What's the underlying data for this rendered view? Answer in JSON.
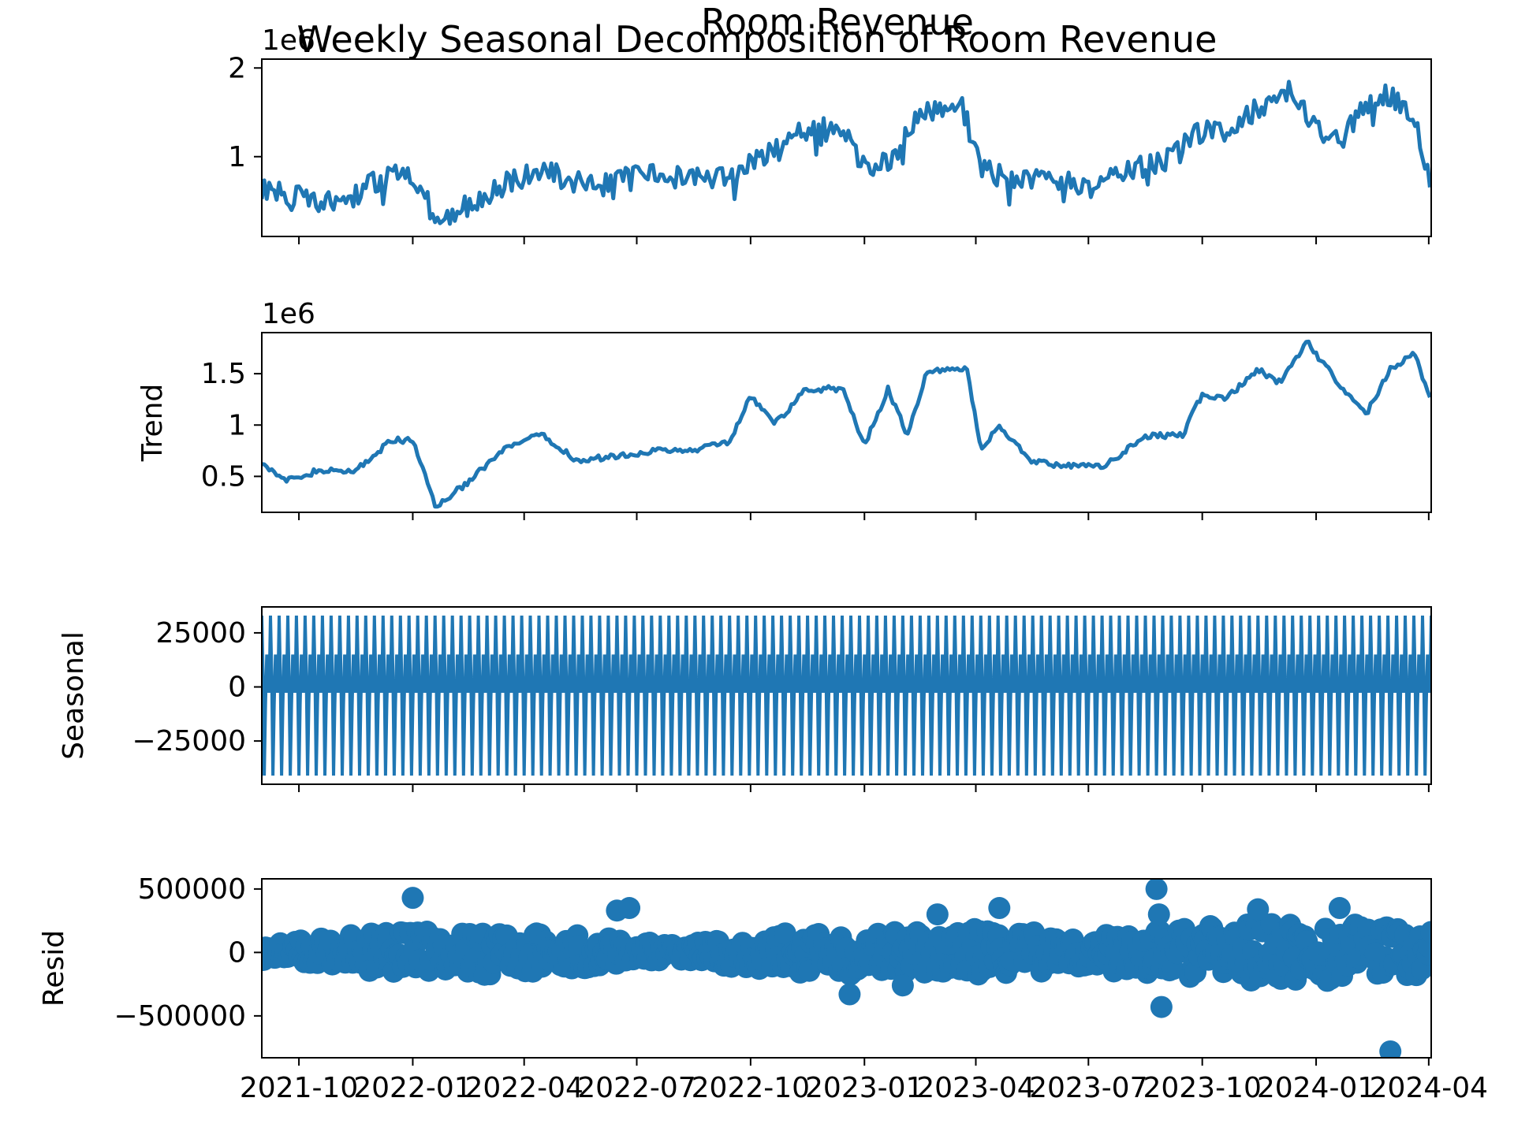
{
  "figure": {
    "suptitle": "Weekly Seasonal Decomposition of Room Revenue",
    "title": "Room Revenue",
    "line_color": "#1f77b4",
    "x_tick_labels": [
      "2021-10",
      "2022-01",
      "2022-04",
      "2022-07",
      "2022-10",
      "2023-01",
      "2023-04",
      "2023-07",
      "2023-10",
      "2024-01",
      "2024-04"
    ]
  },
  "chart_data": [
    {
      "type": "line",
      "panel": "observed",
      "ylabel": "",
      "offset_label": "1e6",
      "yticks": [
        1,
        2
      ],
      "ylim": [
        0.1,
        2.1
      ],
      "xlim": [
        "2021-09-01",
        "2024-04-03"
      ],
      "x": [
        "2021-09-01",
        "2021-10-15",
        "2021-11-15",
        "2021-12-15",
        "2022-01-01",
        "2022-01-20",
        "2022-02-15",
        "2022-03-15",
        "2022-04-15",
        "2022-05-15",
        "2022-06-15",
        "2022-07-15",
        "2022-08-15",
        "2022-09-15",
        "2022-10-15",
        "2022-11-15",
        "2022-12-15",
        "2023-01-01",
        "2023-01-20",
        "2023-02-15",
        "2023-03-01",
        "2023-03-20",
        "2023-04-05",
        "2023-05-01",
        "2023-06-01",
        "2023-07-01",
        "2023-08-01",
        "2023-09-01",
        "2023-10-01",
        "2023-10-20",
        "2023-11-15",
        "2023-12-10",
        "2024-01-01",
        "2024-01-20",
        "2024-02-10",
        "2024-03-01",
        "2024-03-20",
        "2024-04-03"
      ],
      "y": [
        0.65,
        0.5,
        0.55,
        0.85,
        0.82,
        0.28,
        0.45,
        0.7,
        0.85,
        0.7,
        0.75,
        0.78,
        0.75,
        0.8,
        1.05,
        1.3,
        1.35,
        0.85,
        0.95,
        1.5,
        1.55,
        1.6,
        0.9,
        0.7,
        0.75,
        0.65,
        0.85,
        0.95,
        1.3,
        1.35,
        1.55,
        1.75,
        1.3,
        1.15,
        1.6,
        1.7,
        1.45,
        0.65
      ]
    },
    {
      "type": "line",
      "panel": "trend",
      "ylabel": "Trend",
      "offset_label": "1e6",
      "yticks": [
        0.5,
        1.0,
        1.5
      ],
      "ylim": [
        0.15,
        1.9
      ],
      "xlim": [
        "2021-09-01",
        "2024-04-03"
      ],
      "x": [
        "2021-09-01",
        "2021-09-20",
        "2021-10-15",
        "2021-11-15",
        "2021-12-15",
        "2022-01-01",
        "2022-01-20",
        "2022-02-15",
        "2022-03-15",
        "2022-04-01",
        "2022-04-15",
        "2022-05-15",
        "2022-06-15",
        "2022-07-15",
        "2022-08-15",
        "2022-09-15",
        "2022-10-01",
        "2022-10-20",
        "2022-11-15",
        "2022-12-15",
        "2023-01-01",
        "2023-01-20",
        "2023-02-05",
        "2023-02-20",
        "2023-03-10",
        "2023-03-25",
        "2023-04-05",
        "2023-04-20",
        "2023-05-15",
        "2023-06-15",
        "2023-07-15",
        "2023-08-15",
        "2023-09-15",
        "2023-10-01",
        "2023-10-20",
        "2023-11-15",
        "2023-12-01",
        "2023-12-25",
        "2024-01-20",
        "2024-02-10",
        "2024-03-01",
        "2024-03-20",
        "2024-04-03"
      ],
      "y": [
        0.65,
        0.45,
        0.55,
        0.55,
        0.85,
        0.85,
        0.2,
        0.45,
        0.75,
        0.85,
        0.9,
        0.65,
        0.7,
        0.75,
        0.75,
        0.85,
        1.3,
        1.0,
        1.35,
        1.35,
        0.8,
        1.35,
        0.9,
        1.5,
        1.55,
        1.55,
        0.75,
        1.0,
        0.65,
        0.6,
        0.6,
        0.9,
        0.9,
        1.3,
        1.25,
        1.55,
        1.4,
        1.8,
        1.4,
        1.1,
        1.55,
        1.7,
        1.25
      ]
    },
    {
      "type": "line",
      "panel": "seasonal",
      "ylabel": "Seasonal",
      "yticks": [
        25000,
        0,
        -25000
      ],
      "ylim": [
        -45000,
        37000
      ],
      "period_days": 7,
      "cycle_values": [
        33000,
        5000,
        -41000,
        -8000,
        15000,
        -2000,
        -2000
      ],
      "xlim": [
        "2021-09-01",
        "2024-04-03"
      ]
    },
    {
      "type": "scatter",
      "panel": "resid",
      "ylabel": "Resid",
      "yticks": [
        500000,
        0,
        -500000
      ],
      "ylim": [
        -830000,
        580000
      ],
      "xlim": [
        "2021-09-01",
        "2024-04-03"
      ],
      "outliers": {
        "x": [
          "2022-01-01",
          "2022-06-15",
          "2022-06-25",
          "2023-03-01",
          "2023-04-20",
          "2023-08-25",
          "2023-08-27",
          "2023-08-29",
          "2023-11-15",
          "2024-01-20",
          "2024-03-01",
          "2023-02-01",
          "2022-12-20"
        ],
        "y": [
          430000,
          330000,
          350000,
          300000,
          350000,
          500000,
          300000,
          -430000,
          340000,
          350000,
          -780000,
          -260000,
          -330000
        ]
      }
    }
  ]
}
